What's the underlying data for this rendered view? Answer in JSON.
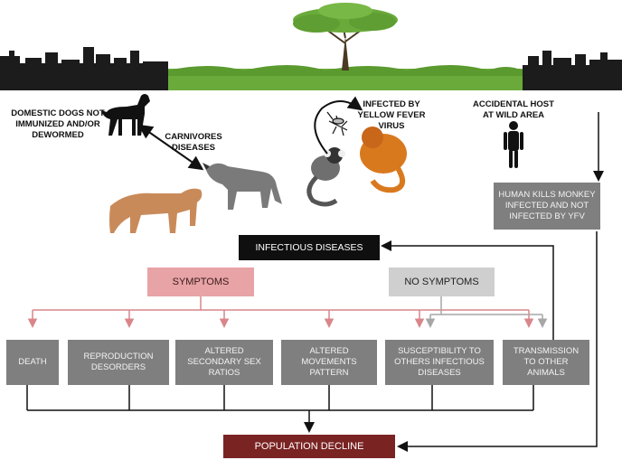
{
  "labels": {
    "domestic_dogs": "DOMESTIC DOGS NOT IMMUNIZED AND/OR DEWORMED",
    "carnivores": "CARNIVORES DISEASES",
    "infected_yfv": "INFECTED BY YELLOW FEVER VIRUS",
    "accidental_host": "ACCIDENTAL HOST AT WILD AREA"
  },
  "boxes": {
    "human_kills": "HUMAN KILLS MONKEY INFECTED AND NOT INFECTED BY YFV",
    "infectious_diseases": "INFECTIOUS DISEASES",
    "symptoms": "SYMPTOMS",
    "no_symptoms": "NO SYMPTOMS",
    "population_decline": "POPULATION DECLINE"
  },
  "outcomes": [
    "DEATH",
    "REPRODUCTION DESORDERS",
    "ALTERED SECONDARY SEX RATIOS",
    "ALTERED MOVEMENTS PATTERN",
    "SUSCEPTIBILITY TO OTHERS INFECTIOUS DISEASES",
    "TRANSMISSION TO OTHER ANIMALS"
  ],
  "colors": {
    "symptoms_line": "#d9868a",
    "no_symptoms_line": "#a6a6a6",
    "box_gray": "#7f7f7f",
    "decline": "#7a2323",
    "forest_green": "#6aaa3a"
  }
}
